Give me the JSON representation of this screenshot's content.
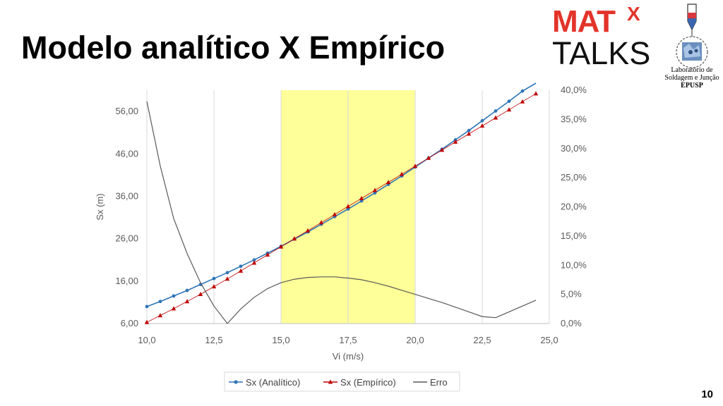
{
  "slide": {
    "title": "Modelo analítico X Empírico",
    "page_number": "10",
    "logo": {
      "mat": "MAT",
      "x": "X",
      "talks": "TALKS"
    },
    "lab_caption": {
      "line1": "Laboratório de",
      "line2": "Soldagem e Junção",
      "line3": "EPUSP"
    }
  },
  "colors": {
    "analitico": "#2e75b6",
    "empirico": "#c00000",
    "erro": "#595959",
    "highlight": "#ffff99",
    "grid": "#d9d9d9"
  },
  "chart_data": {
    "type": "line",
    "title": "",
    "xlabel": "Vi (m/s)",
    "ylabel": "Sx (m)",
    "y2label": "",
    "xlim": [
      10,
      25
    ],
    "ylim": [
      6,
      61
    ],
    "y2lim": [
      0,
      0.4
    ],
    "x_ticks": [
      "10,0",
      "12,5",
      "15,0",
      "17,5",
      "20,0",
      "22,5",
      "25,0"
    ],
    "y_ticks": [
      "6,00",
      "16,00",
      "26,00",
      "36,00",
      "46,00",
      "56,00"
    ],
    "y2_ticks": [
      "0,0%",
      "5,0%",
      "10,0%",
      "15,0%",
      "20,0%",
      "25,0%",
      "30,0%",
      "35,0%",
      "40,0%"
    ],
    "highlight_x": [
      15,
      20
    ],
    "grid": true,
    "legend_position": "bottom",
    "x": [
      10,
      10.5,
      11,
      11.5,
      12,
      12.5,
      13,
      13.5,
      14,
      14.5,
      15,
      15.5,
      16,
      16.5,
      17,
      17.5,
      18,
      18.5,
      19,
      19.5,
      20,
      20.5,
      21,
      21.5,
      22,
      22.5,
      23,
      23.5,
      24,
      24.5
    ],
    "series": [
      {
        "name": "Sx (Analítico)",
        "axis": "left",
        "marker": "circle",
        "values": [
          10.0,
          11.2,
          12.5,
          13.8,
          15.2,
          16.6,
          18.0,
          19.5,
          21.0,
          22.6,
          24.2,
          25.9,
          27.6,
          29.4,
          31.2,
          33.0,
          34.9,
          36.8,
          38.8,
          40.8,
          42.9,
          45.0,
          47.1,
          49.3,
          51.5,
          53.8,
          56.1,
          58.4,
          60.8,
          63.2
        ]
      },
      {
        "name": "Sx (Empírico)",
        "axis": "left",
        "marker": "triangle",
        "values": [
          6.3,
          7.9,
          9.5,
          11.2,
          12.9,
          14.7,
          16.5,
          18.4,
          20.3,
          22.2,
          24.1,
          26.0,
          27.9,
          29.8,
          31.7,
          33.6,
          35.5,
          37.4,
          39.3,
          41.2,
          43.1,
          45.0,
          46.9,
          48.8,
          50.7,
          52.6,
          54.5,
          56.4,
          58.3,
          60.2
        ]
      },
      {
        "name": "Erro",
        "axis": "right",
        "marker": "none",
        "values": [
          0.381,
          0.27,
          0.18,
          0.12,
          0.07,
          0.03,
          0.0,
          0.025,
          0.045,
          0.06,
          0.07,
          0.076,
          0.079,
          0.08,
          0.08,
          0.078,
          0.075,
          0.07,
          0.064,
          0.057,
          0.05,
          0.043,
          0.036,
          0.028,
          0.02,
          0.012,
          0.01,
          0.02,
          0.03,
          0.04
        ]
      }
    ]
  }
}
